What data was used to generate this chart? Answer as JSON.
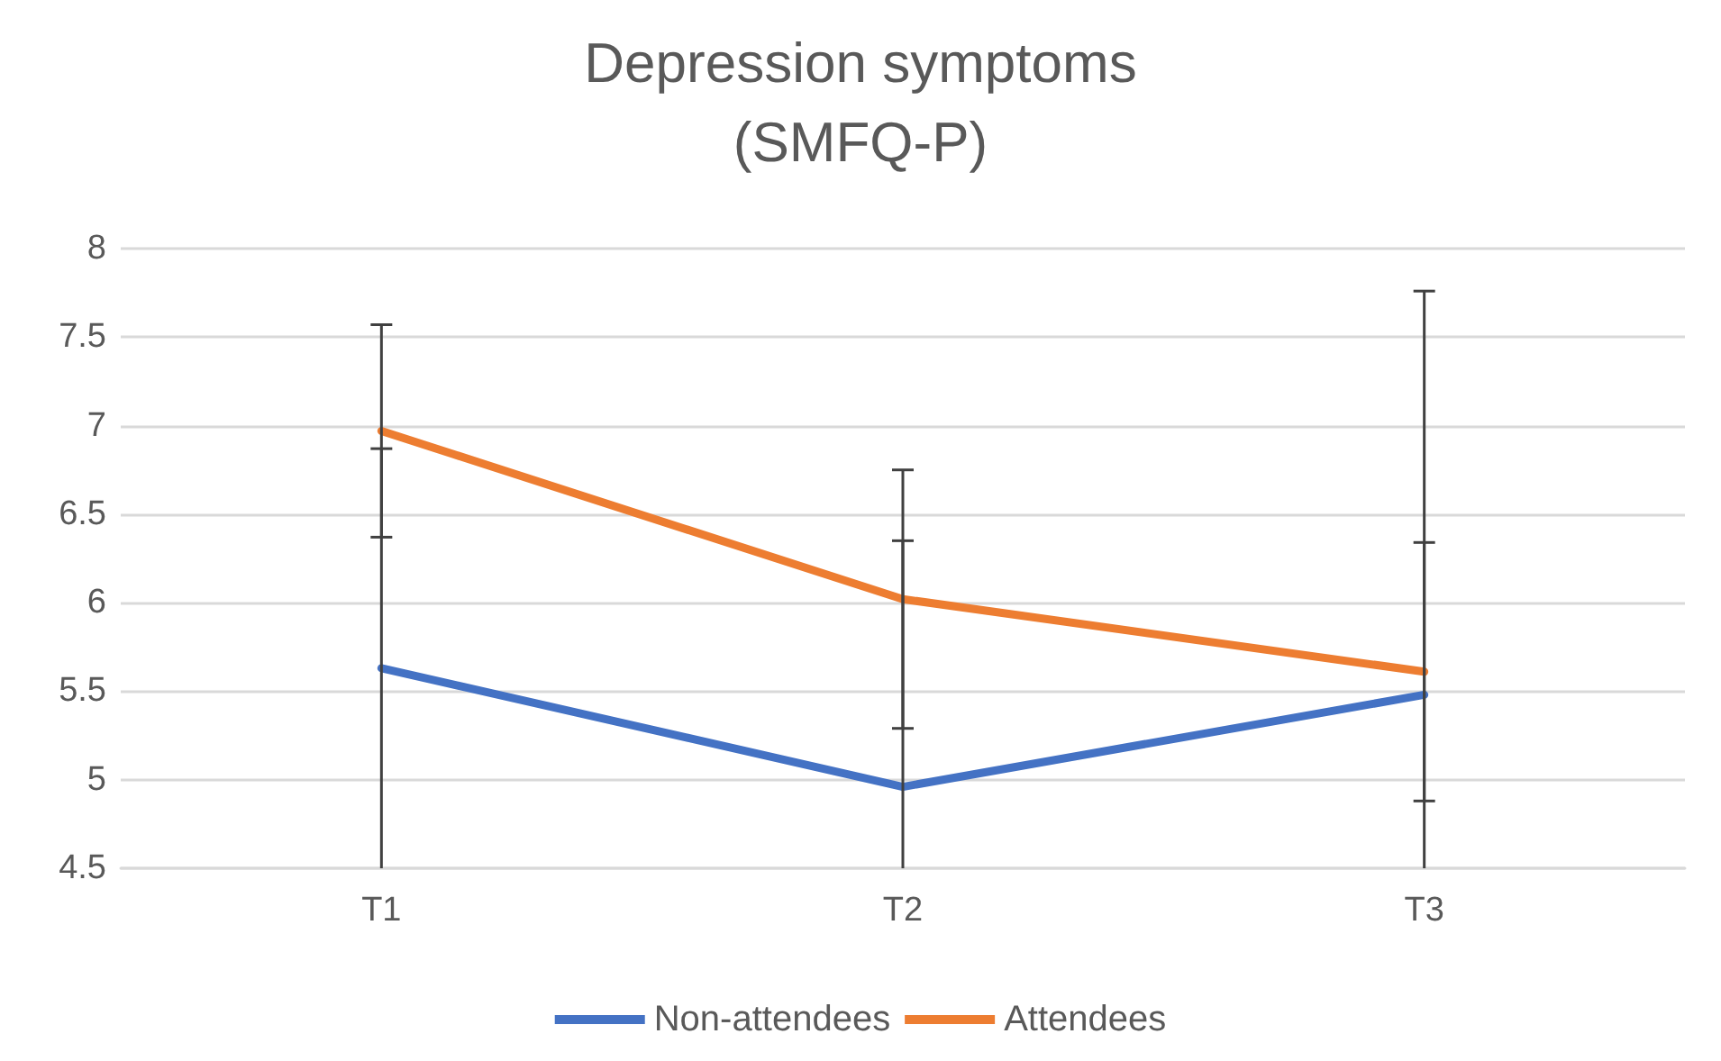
{
  "chart_data": {
    "type": "line",
    "title": "Depression symptoms\n(SMFQ-P)",
    "categories": [
      "T1",
      "T2",
      "T3"
    ],
    "series": [
      {
        "name": "Non-attendees",
        "color": "#4472c4",
        "values": [
          5.63,
          4.96,
          5.48
        ],
        "errors": [
          [
            4.5,
            6.87
          ],
          [
            4.5,
            6.35
          ],
          [
            4.5,
            7.76
          ]
        ]
      },
      {
        "name": "Attendees",
        "color": "#ed7d31",
        "values": [
          6.97,
          6.02,
          5.61
        ],
        "errors": [
          0.6,
          0.73,
          0.73
        ]
      }
    ],
    "ylim": [
      4.5,
      8
    ],
    "yticks": [
      4.5,
      5,
      5.5,
      6,
      6.5,
      7,
      7.5,
      8
    ],
    "grid": "y",
    "legend": "bottom",
    "marker": "none",
    "line_style": "solid"
  }
}
